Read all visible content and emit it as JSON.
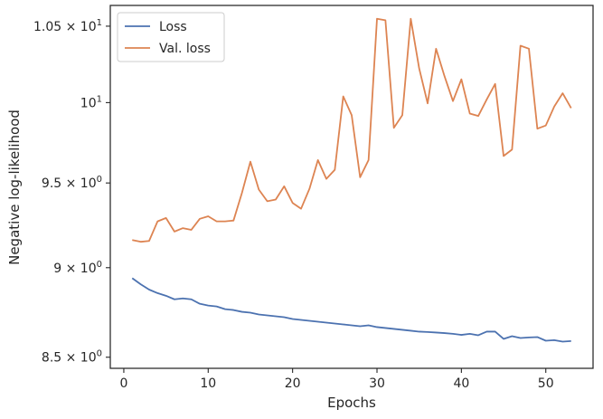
{
  "chart_data": {
    "type": "line",
    "xlabel": "Epochs",
    "ylabel": "Negative log-likelihood",
    "xlim": [
      -1.6,
      55.6
    ],
    "ylim": [
      8.44,
      10.64
    ],
    "yscale": "log",
    "grid": false,
    "legend_position": "top-left",
    "x_ticks": [
      0,
      10,
      20,
      30,
      40,
      50
    ],
    "x_tick_labels": [
      "0",
      "10",
      "20",
      "30",
      "40",
      "50"
    ],
    "y_ticks": [
      8.5,
      9.0,
      9.5,
      10.0,
      10.5
    ],
    "y_tick_labels": [
      {
        "base": "8.5 × 10",
        "exp": "0"
      },
      {
        "base": "9 × 10",
        "exp": "0"
      },
      {
        "base": "9.5 × 10",
        "exp": "0"
      },
      {
        "base": "10",
        "exp": "1"
      },
      {
        "base": "1.05 × 10",
        "exp": "1"
      }
    ],
    "x": [
      1,
      2,
      3,
      4,
      5,
      6,
      7,
      8,
      9,
      10,
      11,
      12,
      13,
      14,
      15,
      16,
      17,
      18,
      19,
      20,
      21,
      22,
      23,
      24,
      25,
      26,
      27,
      28,
      29,
      30,
      31,
      32,
      33,
      34,
      35,
      36,
      37,
      38,
      39,
      40,
      41,
      42,
      43,
      44,
      45,
      46,
      47,
      48,
      49,
      50,
      51,
      52,
      53
    ],
    "series": [
      {
        "name": "Loss",
        "color": "#4c72b0",
        "values": [
          8.94,
          8.905,
          8.875,
          8.855,
          8.84,
          8.82,
          8.825,
          8.82,
          8.795,
          8.785,
          8.78,
          8.765,
          8.76,
          8.75,
          8.745,
          8.735,
          8.73,
          8.725,
          8.72,
          8.71,
          8.705,
          8.7,
          8.695,
          8.69,
          8.685,
          8.68,
          8.675,
          8.67,
          8.675,
          8.665,
          8.66,
          8.655,
          8.65,
          8.645,
          8.64,
          8.638,
          8.635,
          8.632,
          8.628,
          8.622,
          8.628,
          8.62,
          8.64,
          8.64,
          8.6,
          8.615,
          8.605,
          8.608,
          8.61,
          8.59,
          8.593,
          8.585,
          8.588
        ]
      },
      {
        "name": "Val. loss",
        "color": "#dd8452",
        "values": [
          9.16,
          9.15,
          9.155,
          9.27,
          9.29,
          9.21,
          9.23,
          9.22,
          9.285,
          9.3,
          9.27,
          9.27,
          9.275,
          9.44,
          9.63,
          9.46,
          9.39,
          9.4,
          9.48,
          9.38,
          9.345,
          9.465,
          9.64,
          9.525,
          9.58,
          10.04,
          9.92,
          9.535,
          9.64,
          10.55,
          10.54,
          9.84,
          9.92,
          10.55,
          10.22,
          9.995,
          10.35,
          10.17,
          10.01,
          10.15,
          9.93,
          9.915,
          10.02,
          10.12,
          9.665,
          9.705,
          10.37,
          10.35,
          9.835,
          9.855,
          9.975,
          10.06,
          9.965
        ]
      }
    ]
  }
}
